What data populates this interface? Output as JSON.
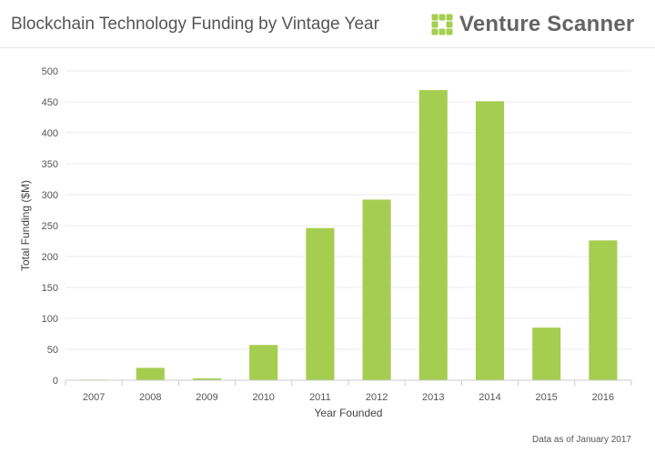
{
  "header": {
    "title": "Blockchain Technology Funding by Vintage Year",
    "brand_name": "Venture Scanner",
    "brand_logo": "venture-scanner-grid-logo",
    "brand_color": "#a5cd50"
  },
  "footnote": "Data as of January 2017",
  "chart_data": {
    "type": "bar",
    "title": "Blockchain Technology Funding by Vintage Year",
    "xlabel": "Year Founded",
    "ylabel": "Total Funding ($M)",
    "categories": [
      "2007",
      "2008",
      "2009",
      "2010",
      "2011",
      "2012",
      "2013",
      "2014",
      "2015",
      "2016"
    ],
    "values": [
      1,
      20,
      3,
      57,
      246,
      292,
      469,
      451,
      85,
      226
    ],
    "ylim": [
      0,
      500
    ],
    "yticks": [
      0,
      50,
      100,
      150,
      200,
      250,
      300,
      350,
      400,
      450,
      500
    ],
    "grid": true,
    "bar_color": "#a5cd50",
    "grid_color": "#ebebeb",
    "axis_color": "#cccccc"
  }
}
